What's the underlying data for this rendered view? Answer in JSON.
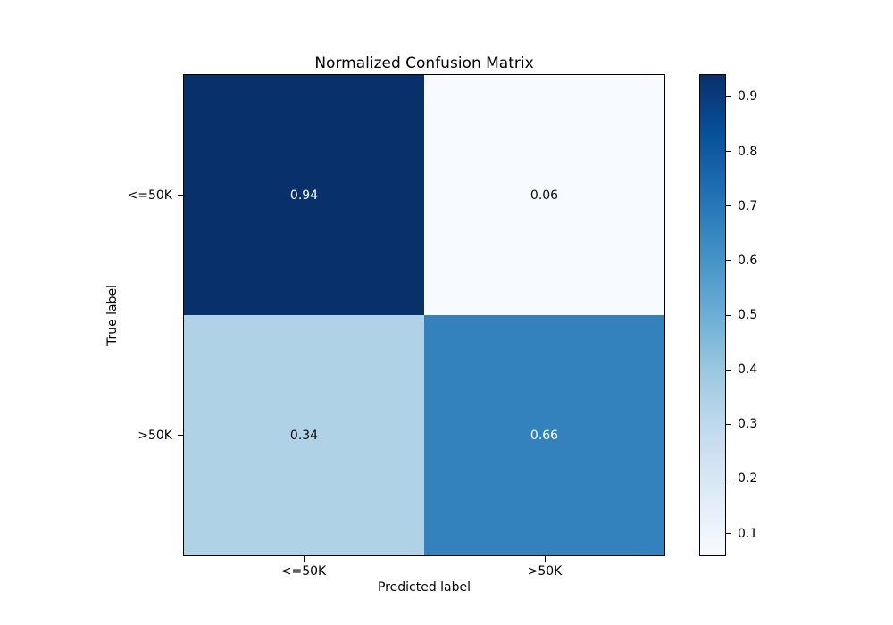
{
  "figure": {
    "background": "#ffffff"
  },
  "chart_data": {
    "type": "heatmap",
    "title": "Normalized Confusion Matrix",
    "xlabel": "Predicted label",
    "ylabel": "True label",
    "x_categories": [
      "<=50K",
      ">50K"
    ],
    "y_categories": [
      "<=50K",
      ">50K"
    ],
    "matrix": [
      [
        0.94,
        0.06
      ],
      [
        0.34,
        0.66
      ]
    ],
    "cells": [
      {
        "true_label": "<=50K",
        "predicted_label": "<=50K",
        "value": "0.94",
        "bg": "#08306b",
        "fg": "#ffffff"
      },
      {
        "true_label": "<=50K",
        "predicted_label": ">50K",
        "value": "0.06",
        "bg": "#f7fbff",
        "fg": "#0a0a0a"
      },
      {
        "true_label": ">50K",
        "predicted_label": "<=50K",
        "value": "0.34",
        "bg": "#b0d2e7",
        "fg": "#0a0a0a"
      },
      {
        "true_label": ">50K",
        "predicted_label": ">50K",
        "value": "0.66",
        "bg": "#3382be",
        "fg": "#ffffff"
      }
    ],
    "value_range": [
      0.06,
      0.94
    ],
    "colormap": "Blues",
    "grid": false,
    "legend_position": "right-colorbar",
    "colorbar": {
      "ticks": [
        "0.9",
        "0.8",
        "0.7",
        "0.6",
        "0.5",
        "0.4",
        "0.3",
        "0.2",
        "0.1"
      ],
      "gradient_stops": [
        "#08306b",
        "#08519c",
        "#2171b5",
        "#4292c6",
        "#6baed6",
        "#9ecae1",
        "#c6dbef",
        "#deebf7",
        "#f7fbff"
      ]
    }
  }
}
